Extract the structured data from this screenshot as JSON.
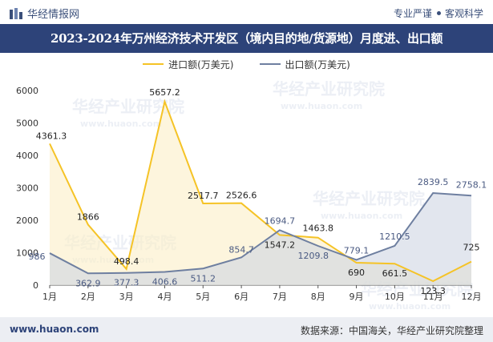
{
  "header": {
    "brand": "华经情报网",
    "tagline_left": "专业严谨",
    "tagline_right": "客观科学"
  },
  "title": "2023-2024年万州经济技术开发区（境内目的地/货源地）月度进、出口额",
  "footer": {
    "url": "www.huaon.com",
    "source": "数据来源：中国海关，华经产业研究院整理"
  },
  "watermark": {
    "cn": "华经产业研究院",
    "url": "www.huaon.com"
  },
  "colors": {
    "import": "#f5c326",
    "export": "#6e7fa0",
    "import_fill": "#fbefc6",
    "export_fill": "#ced5e3",
    "title_bg": "#2d4379"
  },
  "chart_data": {
    "type": "area",
    "categories": [
      "1月",
      "2月",
      "3月",
      "4月",
      "5月",
      "6月",
      "7月",
      "8月",
      "9月",
      "10月",
      "11月",
      "12月"
    ],
    "series": [
      {
        "name": "进口额(万美元)",
        "values": [
          4361.3,
          1866,
          498.4,
          5657.2,
          2517.7,
          2526.6,
          1547.2,
          1463.8,
          690,
          661.5,
          123.3,
          725
        ],
        "labels": [
          "4361.3",
          "1866",
          "498.4",
          "5657.2",
          "2517.7",
          "2526.6",
          "1547.2",
          "1463.8",
          "690",
          "661.5",
          "123.3",
          "725"
        ]
      },
      {
        "name": "出口额(万美元)",
        "values": [
          986,
          362.9,
          377.3,
          406.6,
          511.2,
          854.7,
          1694.7,
          1209.8,
          779.1,
          1210.5,
          2839.5,
          2758.1
        ],
        "labels": [
          "986",
          "362.9",
          "377.3",
          "406.6",
          "511.2",
          "854.7",
          "1694.7",
          "1209.8",
          "779.1",
          "1210.5",
          "2839.5",
          "2758.1"
        ]
      }
    ],
    "yticks": [
      "0",
      "1000",
      "2000",
      "3000",
      "4000",
      "5000",
      "6000"
    ],
    "ylim": [
      0,
      6000
    ],
    "grid": false,
    "legend": "top-center"
  }
}
